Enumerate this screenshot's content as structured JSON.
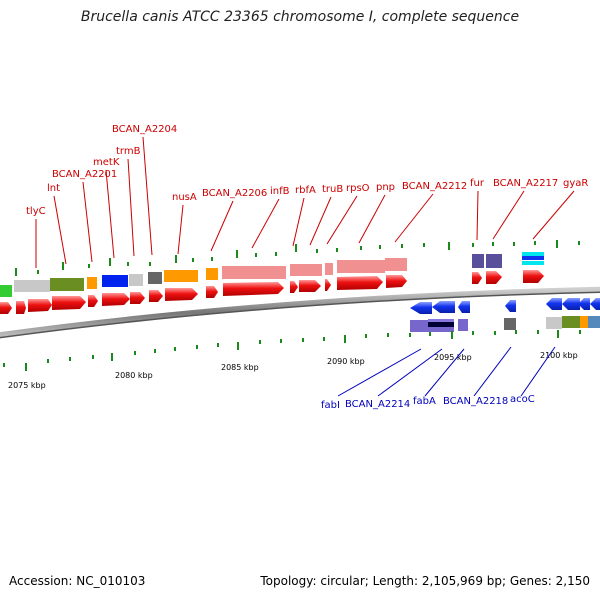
{
  "title": "Brucella canis ATCC 23365 chromosome I, complete sequence",
  "footer": {
    "accession": "Accession: NC_010103",
    "summary": "Topology: circular; Length: 2,105,969 bp; Genes: 2,150"
  },
  "axis_ticks": [
    "2075 kbp",
    "2080 kbp",
    "2085 kbp",
    "2090 kbp",
    "2095 kbp",
    "2100 kbp"
  ],
  "genes_top": [
    "tlyC",
    "lnt",
    "BCAN_A2201",
    "metK",
    "trmB",
    "BCAN_A2204",
    "nusA",
    "BCAN_A2206",
    "infB",
    "rbfA",
    "truB",
    "rpsO",
    "pnp",
    "BCAN_A2212",
    "fur",
    "BCAN_A2217",
    "gyaR"
  ],
  "genes_bottom": [
    "fabI",
    "BCAN_A2214",
    "fabA",
    "BCAN_A2218",
    "acoC"
  ],
  "colors": {
    "forward_gene": "#ee1111",
    "reverse_gene": "#1133ee",
    "backbone": "#8a8a8a",
    "tick": "#1a8a1a",
    "label_top": "#cc0000",
    "label_bottom": "#0000bb"
  }
}
